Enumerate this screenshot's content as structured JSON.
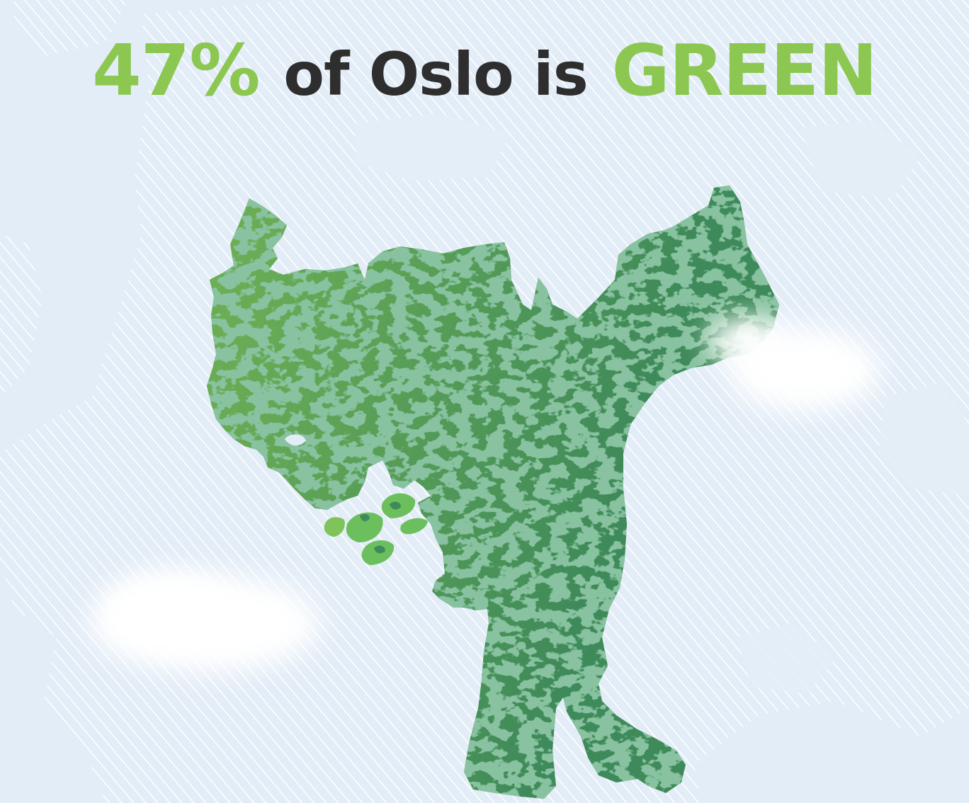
{
  "headline": {
    "percent": "47%",
    "middle": "of Oslo is",
    "emphasis": "GREEN"
  },
  "colors": {
    "background": "#e3edf7",
    "light_green": "#8cc751",
    "dark_green": "#3f8a5a",
    "text_dark": "#2e2e2e",
    "hatch": "#ffffff",
    "cloud": "#ffffff"
  },
  "map": {
    "subject": "Oslo municipality",
    "green_share_percent": 47,
    "texture": "camouflage pattern of light and dark green",
    "decorations": [
      "hatched background land",
      "soft white clouds",
      "small green islands"
    ]
  }
}
